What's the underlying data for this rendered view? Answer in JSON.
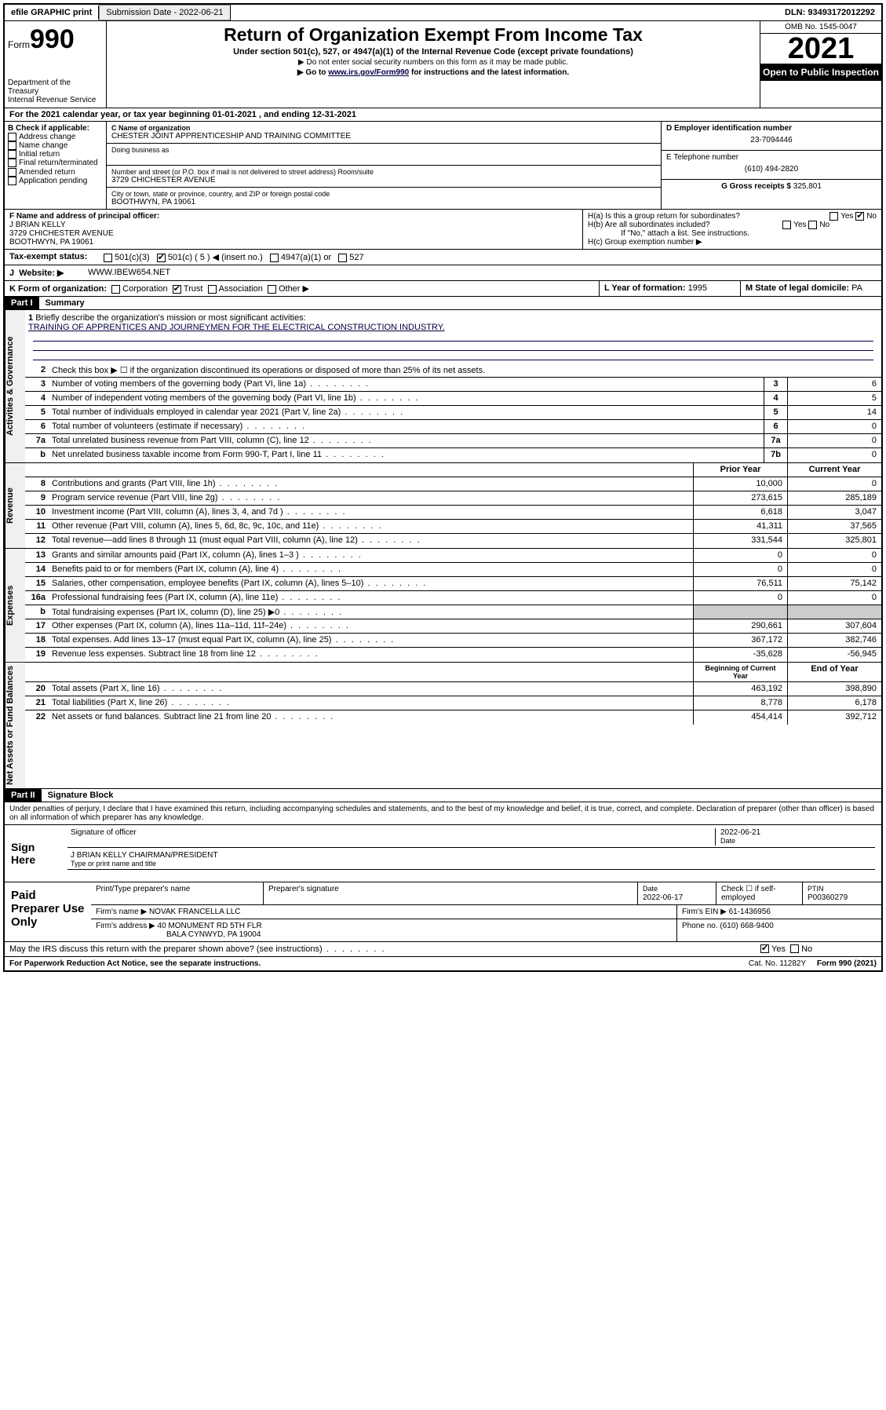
{
  "topbar": {
    "efile": "efile GRAPHIC print",
    "subdate_label": "Submission Date - ",
    "subdate": "2022-06-21",
    "dln_label": "DLN: ",
    "dln": "93493172012292"
  },
  "header": {
    "form_label": "Form",
    "form_num": "990",
    "dept": "Department of the Treasury\nInternal Revenue Service",
    "title": "Return of Organization Exempt From Income Tax",
    "sub1": "Under section 501(c), 527, or 4947(a)(1) of the Internal Revenue Code (except private foundations)",
    "sub2": "▶ Do not enter social security numbers on this form as it may be made public.",
    "sub3_pre": "▶ Go to ",
    "sub3_link": "www.irs.gov/Form990",
    "sub3_post": " for instructions and the latest information.",
    "omb": "OMB No. 1545-0047",
    "year": "2021",
    "inspect": "Open to Public Inspection"
  },
  "rowA": "For the 2021 calendar year, or tax year beginning 01-01-2021   , and ending 12-31-2021",
  "boxB": {
    "title": "B Check if applicable:",
    "opts": [
      "Address change",
      "Name change",
      "Initial return",
      "Final return/terminated",
      "Amended return",
      "Application pending"
    ]
  },
  "boxC": {
    "name_label": "C Name of organization",
    "name": "CHESTER JOINT APPRENTICESHIP AND TRAINING COMMITTEE",
    "dba_label": "Doing business as",
    "addr_label": "Number and street (or P.O. box if mail is not delivered to street address)       Room/suite",
    "addr": "3729 CHICHESTER AVENUE",
    "city_label": "City or town, state or province, country, and ZIP or foreign postal code",
    "city": "BOOTHWYN, PA  19061"
  },
  "boxD": {
    "label": "D Employer identification number",
    "val": "23-7094446"
  },
  "boxE": {
    "label": "E Telephone number",
    "val": "(610) 494-2820"
  },
  "boxG": {
    "label": "G Gross receipts $ ",
    "val": "325,801"
  },
  "boxF": {
    "label": "F  Name and address of principal officer:",
    "name": "J BRIAN KELLY",
    "addr1": "3729 CHICHESTER AVENUE",
    "addr2": "BOOTHWYN, PA  19061"
  },
  "boxH": {
    "ha": "H(a)  Is this a group return for subordinates?",
    "hb": "H(b)  Are all subordinates included?",
    "hb_note": "If \"No,\" attach a list. See instructions.",
    "hc": "H(c)  Group exemption number ▶"
  },
  "taxI": {
    "label": "Tax-exempt status:",
    "opts": [
      "501(c)(3)",
      "501(c) ( 5 ) ◀ (insert no.)",
      "4947(a)(1) or",
      "527"
    ]
  },
  "siteJ": {
    "label": "Website: ▶",
    "val": " WWW.IBEW654.NET"
  },
  "rowK": {
    "label": "K Form of organization:",
    "opts": [
      "Corporation",
      "Trust",
      "Association",
      "Other ▶"
    ]
  },
  "rowL": {
    "label": "L Year of formation: ",
    "val": "1995"
  },
  "rowM": {
    "label": "M State of legal domicile: ",
    "val": "PA"
  },
  "part1": {
    "hdr": "Part I",
    "title": "Summary"
  },
  "mission": {
    "prompt": "Briefly describe the organization's mission or most significant activities:",
    "text": "TRAINING OF APPRENTICES AND JOURNEYMEN FOR THE ELECTRICAL CONSTRUCTION INDUSTRY."
  },
  "vtabs": {
    "gov": "Activities & Governance",
    "rev": "Revenue",
    "exp": "Expenses",
    "net": "Net Assets or Fund Balances"
  },
  "lines_gov": [
    {
      "n": "2",
      "t": "Check this box ▶ ☐  if the organization discontinued its operations or disposed of more than 25% of its net assets."
    },
    {
      "n": "3",
      "t": "Number of voting members of the governing body (Part VI, line 1a)",
      "box": "3",
      "v": "6"
    },
    {
      "n": "4",
      "t": "Number of independent voting members of the governing body (Part VI, line 1b)",
      "box": "4",
      "v": "5"
    },
    {
      "n": "5",
      "t": "Total number of individuals employed in calendar year 2021 (Part V, line 2a)",
      "box": "5",
      "v": "14"
    },
    {
      "n": "6",
      "t": "Total number of volunteers (estimate if necessary)",
      "box": "6",
      "v": "0"
    },
    {
      "n": "7a",
      "t": "Total unrelated business revenue from Part VIII, column (C), line 12",
      "box": "7a",
      "v": "0"
    },
    {
      "n": "b",
      "t": "Net unrelated business taxable income from Form 990-T, Part I, line 11",
      "box": "7b",
      "v": "0"
    }
  ],
  "col_hdr": {
    "prior": "Prior Year",
    "curr": "Current Year"
  },
  "lines_rev": [
    {
      "n": "8",
      "t": "Contributions and grants (Part VIII, line 1h)",
      "p": "10,000",
      "c": "0"
    },
    {
      "n": "9",
      "t": "Program service revenue (Part VIII, line 2g)",
      "p": "273,615",
      "c": "285,189"
    },
    {
      "n": "10",
      "t": "Investment income (Part VIII, column (A), lines 3, 4, and 7d )",
      "p": "6,618",
      "c": "3,047"
    },
    {
      "n": "11",
      "t": "Other revenue (Part VIII, column (A), lines 5, 6d, 8c, 9c, 10c, and 11e)",
      "p": "41,311",
      "c": "37,565"
    },
    {
      "n": "12",
      "t": "Total revenue—add lines 8 through 11 (must equal Part VIII, column (A), line 12)",
      "p": "331,544",
      "c": "325,801"
    }
  ],
  "lines_exp": [
    {
      "n": "13",
      "t": "Grants and similar amounts paid (Part IX, column (A), lines 1–3 )",
      "p": "0",
      "c": "0"
    },
    {
      "n": "14",
      "t": "Benefits paid to or for members (Part IX, column (A), line 4)",
      "p": "0",
      "c": "0"
    },
    {
      "n": "15",
      "t": "Salaries, other compensation, employee benefits (Part IX, column (A), lines 5–10)",
      "p": "76,511",
      "c": "75,142"
    },
    {
      "n": "16a",
      "t": "Professional fundraising fees (Part IX, column (A), line 11e)",
      "p": "0",
      "c": "0"
    },
    {
      "n": "b",
      "t": "Total fundraising expenses (Part IX, column (D), line 25) ▶0",
      "p": "",
      "c": "",
      "gray": true
    },
    {
      "n": "17",
      "t": "Other expenses (Part IX, column (A), lines 11a–11d, 11f–24e)",
      "p": "290,661",
      "c": "307,604"
    },
    {
      "n": "18",
      "t": "Total expenses. Add lines 13–17 (must equal Part IX, column (A), line 25)",
      "p": "367,172",
      "c": "382,746"
    },
    {
      "n": "19",
      "t": "Revenue less expenses. Subtract line 18 from line 12",
      "p": "-35,628",
      "c": "-56,945"
    }
  ],
  "col_hdr2": {
    "beg": "Beginning of Current Year",
    "end": "End of Year"
  },
  "lines_net": [
    {
      "n": "20",
      "t": "Total assets (Part X, line 16)",
      "p": "463,192",
      "c": "398,890"
    },
    {
      "n": "21",
      "t": "Total liabilities (Part X, line 26)",
      "p": "8,778",
      "c": "6,178"
    },
    {
      "n": "22",
      "t": "Net assets or fund balances. Subtract line 21 from line 20",
      "p": "454,414",
      "c": "392,712"
    }
  ],
  "part2": {
    "hdr": "Part II",
    "title": "Signature Block"
  },
  "perjury": "Under penalties of perjury, I declare that I have examined this return, including accompanying schedules and statements, and to the best of my knowledge and belief, it is true, correct, and complete. Declaration of preparer (other than officer) is based on all information of which preparer has any knowledge.",
  "sign": {
    "here": "Sign Here",
    "sig_label": "Signature of officer",
    "date_label": "Date",
    "date": "2022-06-21",
    "name": "J BRIAN KELLY CHAIRMAN/PRESIDENT",
    "name_label": "Type or print name and title"
  },
  "prep": {
    "title": "Paid Preparer Use Only",
    "r1": {
      "c1": "Print/Type preparer's name",
      "c2": "Preparer's signature",
      "c3l": "Date",
      "c3": "2022-06-17",
      "c4": "Check ☐ if self-employed",
      "c5l": "PTIN",
      "c5": "P00360279"
    },
    "r2": {
      "l": "Firm's name    ▶",
      "v": "NOVAK FRANCELLA LLC",
      "r": "Firm's EIN ▶ 61-1436956"
    },
    "r3": {
      "l": "Firm's address ▶",
      "v1": "40 MONUMENT RD 5TH FLR",
      "v2": "BALA CYNWYD, PA  19004",
      "r": "Phone no. (610) 668-9400"
    }
  },
  "discuss": "May the IRS discuss this return with the preparer shown above? (see instructions)",
  "footer": {
    "l": "For Paperwork Reduction Act Notice, see the separate instructions.",
    "m": "Cat. No. 11282Y",
    "r": "Form 990 (2021)"
  }
}
